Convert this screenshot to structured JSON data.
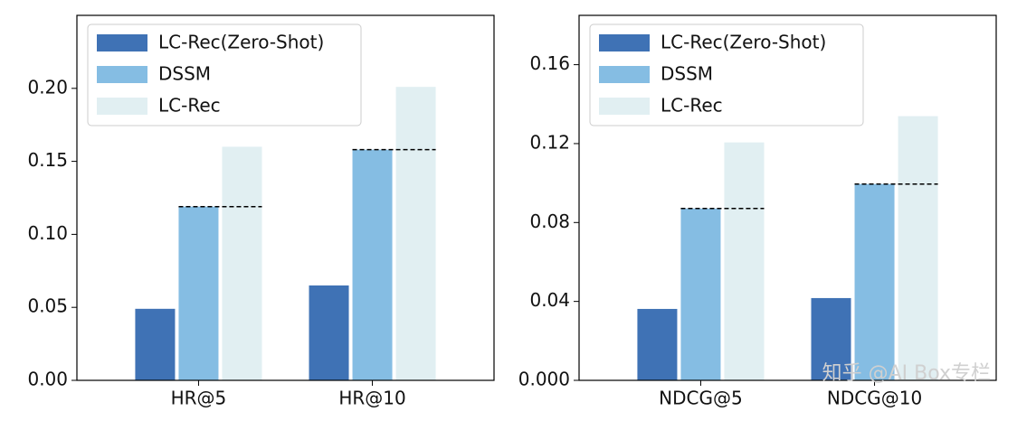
{
  "chart_data": [
    {
      "type": "bar",
      "categories": [
        "HR@5",
        "HR@10"
      ],
      "series": [
        {
          "name": "LC-Rec(Zero-Shot)",
          "color": "#3f72b5",
          "values": [
            0.049,
            0.065
          ]
        },
        {
          "name": "DSSM",
          "color": "#85bde3",
          "values": [
            0.119,
            0.158
          ]
        },
        {
          "name": "LC-Rec",
          "color": "#e1eff2",
          "values": [
            0.16,
            0.201
          ]
        }
      ],
      "ylim": [
        0,
        0.25
      ],
      "yticks": [
        {
          "value": 0,
          "label": "0.00"
        },
        0.05,
        {
          "value": 0.1,
          "label": "0.10"
        },
        0.15,
        {
          "value": 0.2,
          "label": "0.20"
        }
      ],
      "legend": "upper left"
    },
    {
      "type": "bar",
      "categories": [
        "NDCG@5",
        "NDCG@10"
      ],
      "series": [
        {
          "name": "LC-Rec(Zero-Shot)",
          "color": "#3f72b5",
          "values": [
            0.0362,
            0.0417
          ]
        },
        {
          "name": "DSSM",
          "color": "#85bde3",
          "values": [
            0.0871,
            0.0995
          ]
        },
        {
          "name": "LC-Rec",
          "color": "#e1eff2",
          "values": [
            0.1206,
            0.1339
          ]
        }
      ],
      "ylim": [
        0,
        0.185
      ],
      "yticks": [
        {
          "value": 0,
          "label": "0.000"
        },
        0.04,
        0.08,
        0.12,
        0.16
      ],
      "legend": "upper left"
    }
  ],
  "watermark": "知乎 @AI Box专栏"
}
